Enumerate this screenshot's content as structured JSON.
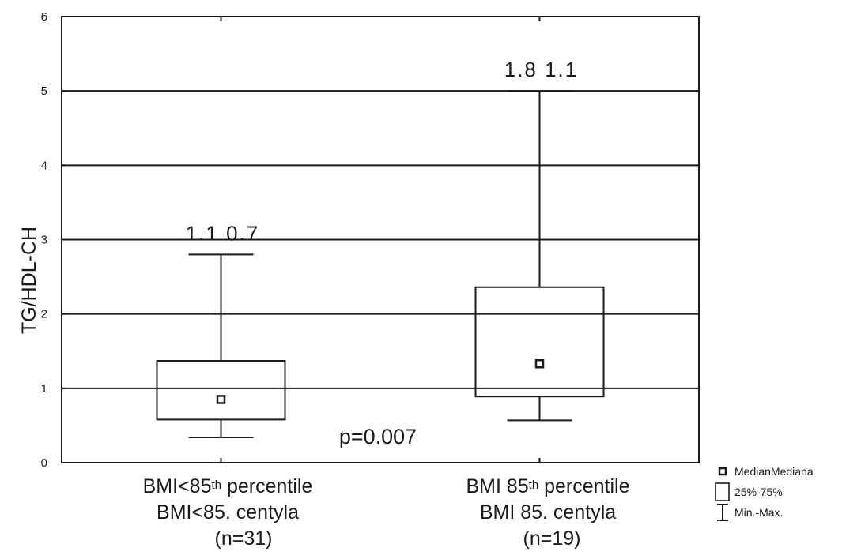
{
  "chart_data": {
    "type": "box",
    "ylabel": "TG/HDL-CH",
    "ylim": [
      0,
      6
    ],
    "yticks": [
      "0",
      "1",
      "2",
      "3",
      "4",
      "5",
      "6"
    ],
    "grid": "horizontal",
    "groups": [
      {
        "label_line1_a": "BMI<85",
        "label_line1_sup": "th",
        "label_line1_b": " percentile",
        "label_line2": "BMI<85. centyla",
        "label_line3": "(n=31)",
        "min": 0.34,
        "q1": 0.58,
        "median": 0.85,
        "q3": 1.37,
        "max": 2.8,
        "annotation": "1.1 0.7"
      },
      {
        "label_line1_a": "BMI 85",
        "label_line1_sup": "th",
        "label_line1_b": "  percentile",
        "label_line2": "BMI 85. centyla",
        "label_line3": "(n=19)",
        "min": 0.57,
        "q1": 0.89,
        "median": 1.33,
        "q3": 2.36,
        "max": 5.0,
        "annotation": "1.8  1.1"
      }
    ],
    "p_value_text": "p=0.007",
    "legend": {
      "position": "bottom-right",
      "median": "MedianMediana",
      "box": "25%-75%",
      "whisker": "Min.-Max."
    }
  }
}
